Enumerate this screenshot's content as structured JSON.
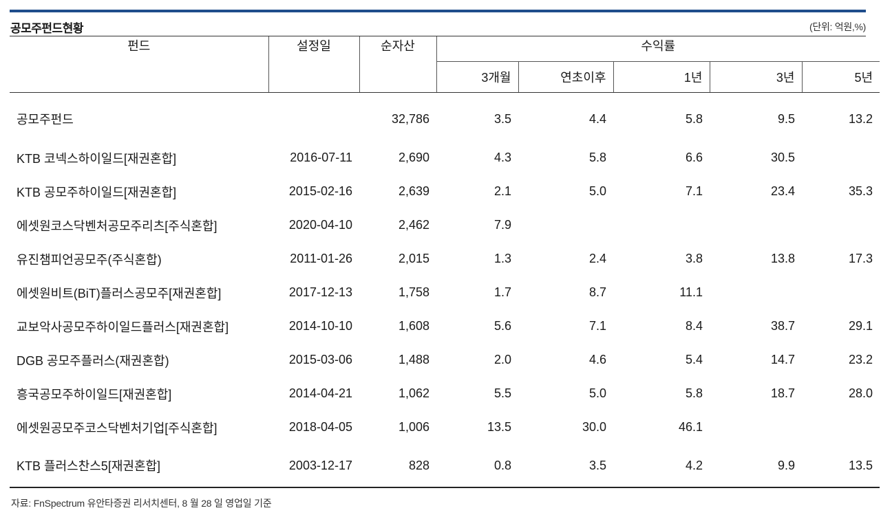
{
  "title": "공모주펀드현황",
  "unit": "(단위: 억원,%)",
  "headers": {
    "fund": "펀드",
    "inception": "설정일",
    "net_assets": "순자산",
    "returns": "수익률",
    "m3": "3개월",
    "ytd": "연초이후",
    "y1": "1년",
    "y3": "3년",
    "y5": "5년"
  },
  "rows": [
    {
      "name": "공모주펀드",
      "date": "",
      "assets": "32,786",
      "m3": "3.5",
      "ytd": "4.4",
      "y1": "5.8",
      "y3": "9.5",
      "y5": "13.2"
    },
    {
      "name": "KTB 코넥스하이일드[재권혼합]",
      "date": "2016-07-11",
      "assets": "2,690",
      "m3": "4.3",
      "ytd": "5.8",
      "y1": "6.6",
      "y3": "30.5",
      "y5": ""
    },
    {
      "name": "KTB 공모주하이일드[재권혼합]",
      "date": "2015-02-16",
      "assets": "2,639",
      "m3": "2.1",
      "ytd": "5.0",
      "y1": "7.1",
      "y3": "23.4",
      "y5": "35.3"
    },
    {
      "name": "에셋원코스닥벤처공모주리츠[주식혼합]",
      "date": "2020-04-10",
      "assets": "2,462",
      "m3": "7.9",
      "ytd": "",
      "y1": "",
      "y3": "",
      "y5": ""
    },
    {
      "name": "유진챔피언공모주(주식혼합)",
      "date": "2011-01-26",
      "assets": "2,015",
      "m3": "1.3",
      "ytd": "2.4",
      "y1": "3.8",
      "y3": "13.8",
      "y5": "17.3"
    },
    {
      "name": "에셋원비트(BiT)플러스공모주[재권혼합]",
      "date": "2017-12-13",
      "assets": "1,758",
      "m3": "1.7",
      "ytd": "8.7",
      "y1": "11.1",
      "y3": "",
      "y5": ""
    },
    {
      "name": "교보악사공모주하이일드플러스[재권혼합]",
      "date": "2014-10-10",
      "assets": "1,608",
      "m3": "5.6",
      "ytd": "7.1",
      "y1": "8.4",
      "y3": "38.7",
      "y5": "29.1"
    },
    {
      "name": "DGB 공모주플러스(재권혼합)",
      "date": "2015-03-06",
      "assets": "1,488",
      "m3": "2.0",
      "ytd": "4.6",
      "y1": "5.4",
      "y3": "14.7",
      "y5": "23.2"
    },
    {
      "name": "흥국공모주하이일드[재권혼합]",
      "date": "2014-04-21",
      "assets": "1,062",
      "m3": "5.5",
      "ytd": "5.0",
      "y1": "5.8",
      "y3": "18.7",
      "y5": "28.0"
    },
    {
      "name": "에셋원공모주코스닥벤처기업[주식혼합]",
      "date": "2018-04-05",
      "assets": "1,006",
      "m3": "13.5",
      "ytd": "30.0",
      "y1": "46.1",
      "y3": "",
      "y5": ""
    },
    {
      "name": "KTB 플러스찬스5[재권혼합]",
      "date": "2003-12-17",
      "assets": "828",
      "m3": "0.8",
      "ytd": "3.5",
      "y1": "4.2",
      "y3": "9.9",
      "y5": "13.5"
    }
  ],
  "source": "자료: FnSpectrum 유안타증권 리서치센터, 8 월 28 일 영업일 기준",
  "colors": {
    "top_rule": "#1f4e8c",
    "text": "#1a1a1a",
    "lines": "#333333"
  }
}
